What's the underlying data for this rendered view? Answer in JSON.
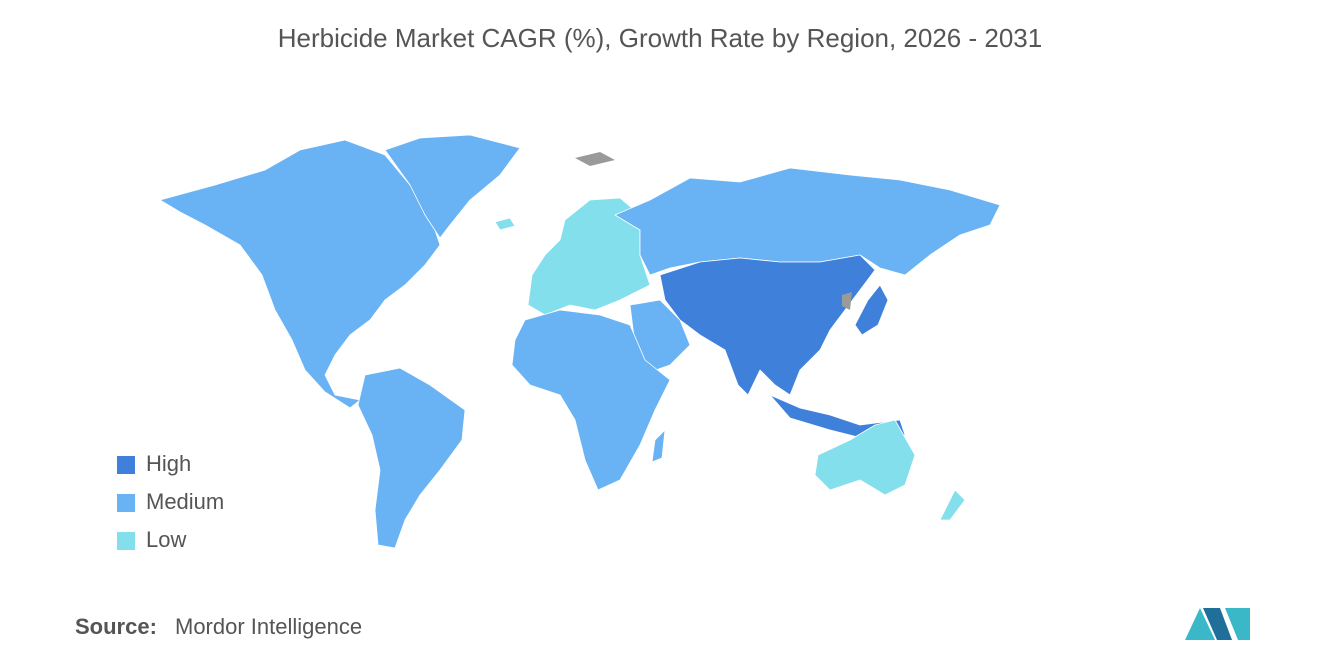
{
  "title": "Herbicide Market CAGR (%), Growth Rate by Region, 2026 - 2031",
  "legend": [
    {
      "label": "High",
      "color": "#3f80db"
    },
    {
      "label": "Medium",
      "color": "#69b3f5"
    },
    {
      "label": "Low",
      "color": "#83dfec"
    }
  ],
  "source": {
    "label": "Source:",
    "text": "Mordor Intelligence"
  }
}
